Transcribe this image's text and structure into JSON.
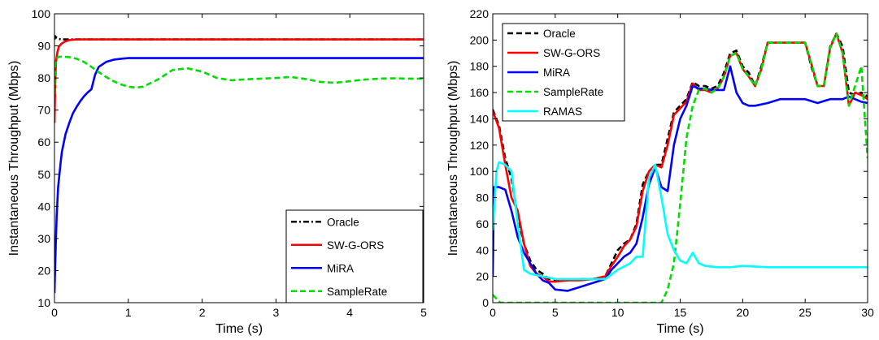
{
  "chart_data": [
    {
      "type": "line",
      "title": "",
      "xlabel": "Time (s)",
      "ylabel": "Instantaneous Throughput (Mbps)",
      "xlim": [
        0,
        5
      ],
      "ylim": [
        10,
        100
      ],
      "xticks": [
        0,
        1,
        2,
        3,
        4,
        5
      ],
      "yticks": [
        10,
        20,
        30,
        40,
        50,
        60,
        70,
        80,
        90,
        100
      ],
      "grid": false,
      "legend_position": "bottom-right",
      "series": [
        {
          "name": "Oracle",
          "color": "#000000",
          "style": "dashdot",
          "x": [
            0,
            0.01,
            0.03,
            0.05,
            0.1,
            0.5,
            1,
            2,
            3,
            4,
            5
          ],
          "y": [
            92,
            93,
            92.5,
            92.2,
            92,
            92,
            92,
            92,
            92,
            92,
            92
          ]
        },
        {
          "name": "SW-G-ORS",
          "color": "#ff0000",
          "style": "solid",
          "x": [
            0,
            0.01,
            0.02,
            0.04,
            0.06,
            0.1,
            0.15,
            0.2,
            0.3,
            0.5,
            1,
            2,
            3,
            4,
            5
          ],
          "y": [
            66,
            78,
            85,
            88,
            89.8,
            90.8,
            91.4,
            91.8,
            92,
            92,
            92,
            92,
            92,
            92,
            92
          ]
        },
        {
          "name": "MiRA",
          "color": "#0000ff",
          "style": "solid",
          "x": [
            0,
            0.01,
            0.02,
            0.03,
            0.05,
            0.08,
            0.1,
            0.15,
            0.2,
            0.25,
            0.3,
            0.35,
            0.4,
            0.45,
            0.5,
            0.55,
            0.6,
            0.7,
            0.8,
            0.9,
            1.0,
            1.5,
            2,
            3,
            4,
            5
          ],
          "y": [
            13,
            22,
            30,
            37,
            46,
            53,
            57,
            62.5,
            66,
            69,
            71,
            72.8,
            74.3,
            75.5,
            76.5,
            81,
            83.5,
            85,
            85.7,
            86,
            86.2,
            86.2,
            86.2,
            86.2,
            86.2,
            86.2
          ]
        },
        {
          "name": "SampleRate",
          "color": "#00dd00",
          "style": "dashed",
          "x": [
            0,
            0.01,
            0.03,
            0.05,
            0.1,
            0.2,
            0.3,
            0.4,
            0.5,
            0.6,
            0.7,
            0.8,
            0.9,
            1.0,
            1.1,
            1.2,
            1.4,
            1.6,
            1.8,
            2.0,
            2.2,
            2.4,
            2.6,
            2.8,
            3.0,
            3.2,
            3.4,
            3.6,
            3.8,
            4.0,
            4.2,
            4.4,
            4.6,
            4.8,
            5.0
          ],
          "y": [
            75,
            84,
            86,
            86.5,
            86.7,
            86.5,
            86,
            85,
            83.5,
            81.8,
            80.3,
            79,
            78,
            77.3,
            77,
            77.3,
            79.5,
            82.5,
            83,
            82,
            80,
            79.3,
            79.6,
            79.8,
            80,
            80.3,
            79.7,
            78.8,
            78.5,
            79,
            79.5,
            79.8,
            79.9,
            79.8,
            79.8
          ]
        }
      ]
    },
    {
      "type": "line",
      "title": "",
      "xlabel": "Time (s)",
      "ylabel": "Instantaneous Throughput (Mbps)",
      "xlim": [
        0,
        30
      ],
      "ylim": [
        0,
        220
      ],
      "xticks": [
        0,
        5,
        10,
        15,
        20,
        25,
        30
      ],
      "yticks": [
        0,
        20,
        40,
        60,
        80,
        100,
        120,
        140,
        160,
        180,
        200,
        220
      ],
      "grid": false,
      "legend_position": "top-left",
      "series": [
        {
          "name": "Oracle",
          "color": "#000000",
          "style": "dashed",
          "x": [
            0,
            0.5,
            1,
            1.5,
            2,
            2.5,
            3,
            3.5,
            4,
            4.5,
            5,
            6,
            7,
            8,
            9,
            9.5,
            10,
            10.5,
            11,
            11.5,
            12,
            12.5,
            13,
            13.5,
            14,
            14.5,
            15,
            15.5,
            16,
            16.5,
            17,
            17.5,
            18,
            18.5,
            19,
            19.5,
            20,
            20.5,
            21,
            21.5,
            22,
            23,
            24,
            25,
            25.5,
            26,
            26.5,
            27,
            27.5,
            28,
            28.5,
            29,
            29.5,
            30
          ],
          "y": [
            147,
            135,
            110,
            95,
            65,
            45,
            32,
            25,
            22,
            18,
            17,
            17,
            18,
            18,
            20,
            30,
            40,
            45,
            48,
            60,
            90,
            100,
            105,
            105,
            125,
            145,
            150,
            155,
            168,
            165,
            165,
            163,
            165,
            175,
            190,
            192,
            180,
            175,
            165,
            180,
            198,
            198,
            198,
            198,
            180,
            165,
            165,
            195,
            205,
            195,
            160,
            158,
            160,
            157
          ]
        },
        {
          "name": "SW-G-ORS",
          "color": "#ff0000",
          "style": "solid",
          "x": [
            0,
            0.5,
            1,
            1.5,
            2,
            2.5,
            3,
            3.5,
            4,
            4.5,
            5,
            6,
            7,
            8,
            9,
            9.5,
            10,
            10.5,
            11,
            11.5,
            12,
            12.5,
            13,
            13.5,
            14,
            14.5,
            15,
            15.5,
            16,
            16.5,
            17,
            17.5,
            18,
            18.5,
            19,
            19.5,
            20,
            20.5,
            21,
            21.5,
            22,
            23,
            24,
            25,
            25.5,
            26,
            26.5,
            27,
            27.5,
            28,
            28.5,
            29,
            29.5,
            30
          ],
          "y": [
            146,
            133,
            105,
            80,
            70,
            45,
            28,
            22,
            20,
            16,
            16,
            17,
            17,
            18,
            20,
            28,
            35,
            43,
            48,
            58,
            85,
            100,
            105,
            103,
            120,
            143,
            148,
            153,
            167,
            162,
            162,
            160,
            163,
            172,
            188,
            190,
            178,
            172,
            165,
            178,
            198,
            198,
            198,
            198,
            182,
            165,
            165,
            194,
            205,
            190,
            150,
            160,
            158,
            155
          ]
        },
        {
          "name": "MiRA",
          "color": "#0000ff",
          "style": "solid",
          "x": [
            0,
            0.1,
            0.5,
            1,
            1.5,
            2,
            2.5,
            3,
            3.5,
            4,
            4.5,
            5,
            6,
            7,
            8,
            9,
            9.5,
            10,
            10.5,
            11,
            11.5,
            12,
            12.5,
            13,
            13.5,
            14,
            14.5,
            15,
            15.5,
            16,
            16.5,
            17,
            17.5,
            18,
            18.5,
            19,
            19.5,
            20,
            20.5,
            21,
            22,
            23,
            24,
            25,
            26,
            27,
            28,
            28.5,
            29,
            29.5,
            30
          ],
          "y": [
            20,
            88,
            88,
            86,
            70,
            50,
            38,
            30,
            22,
            17,
            15,
            10,
            9,
            12,
            15,
            18,
            25,
            30,
            35,
            38,
            45,
            65,
            90,
            103,
            88,
            85,
            120,
            140,
            150,
            165,
            163,
            163,
            162,
            162,
            162,
            180,
            160,
            152,
            150,
            150,
            152,
            155,
            155,
            155,
            152,
            155,
            155,
            157,
            155,
            153,
            152
          ]
        },
        {
          "name": "SampleRate",
          "color": "#00dd00",
          "style": "dashed",
          "x": [
            0,
            0.3,
            0.6,
            1,
            5,
            10,
            13,
            13.5,
            14,
            14.5,
            15,
            15.5,
            16,
            16.5,
            17,
            17.5,
            18,
            18.5,
            19,
            19.5,
            20,
            20.5,
            21,
            21.5,
            22,
            23,
            24,
            25,
            25.5,
            26,
            26.5,
            27,
            27.5,
            28,
            28.5,
            29,
            29.5,
            30
          ],
          "y": [
            6,
            3,
            0,
            0,
            0,
            0,
            0,
            0,
            10,
            30,
            75,
            125,
            150,
            162,
            163,
            160,
            163,
            172,
            188,
            190,
            178,
            172,
            165,
            178,
            198,
            198,
            198,
            198,
            182,
            165,
            165,
            194,
            205,
            190,
            150,
            165,
            180,
            110
          ]
        },
        {
          "name": "RAMAS",
          "color": "#00ffff",
          "style": "solid",
          "x": [
            0,
            0.3,
            0.5,
            1,
            1.5,
            2,
            2.5,
            3,
            4,
            5,
            6,
            7,
            8,
            9,
            10,
            11,
            11.5,
            12,
            12.5,
            13,
            13.5,
            14,
            14.5,
            15,
            15.5,
            16,
            16.5,
            17,
            18,
            19,
            20,
            22,
            25,
            28,
            30
          ],
          "y": [
            55,
            100,
            107,
            105,
            100,
            60,
            25,
            22,
            20,
            18,
            18,
            18,
            18,
            18,
            25,
            30,
            35,
            35,
            95,
            105,
            80,
            52,
            40,
            32,
            30,
            38,
            30,
            28,
            27,
            27,
            28,
            27,
            27,
            27,
            27
          ]
        }
      ]
    }
  ]
}
